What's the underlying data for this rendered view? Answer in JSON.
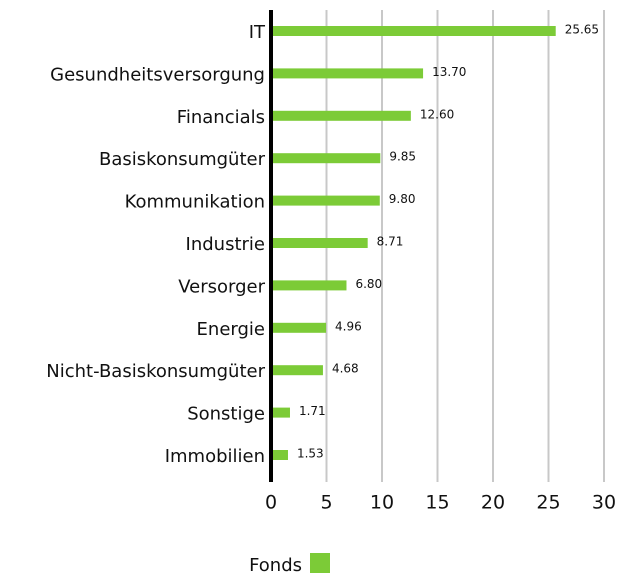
{
  "chart_data": {
    "type": "bar",
    "orientation": "horizontal",
    "categories": [
      "IT",
      "Gesundheitsversorgung",
      "Financials",
      "Basiskonsumgüter",
      "Kommunikation",
      "Industrie",
      "Versorger",
      "Energie",
      "Nicht-Basiskonsumgüter",
      "Sonstige",
      "Immobilien"
    ],
    "series": [
      {
        "name": "Fonds",
        "color": "#7ccb37",
        "values": [
          25.65,
          13.7,
          12.6,
          9.85,
          9.8,
          8.71,
          6.8,
          4.96,
          4.68,
          1.71,
          1.53
        ],
        "value_labels": [
          "25.65",
          "13.70",
          "12.60",
          "9.85",
          "9.80",
          "8.71",
          "6.80",
          "4.96",
          "4.68",
          "1.71",
          "1.53"
        ]
      }
    ],
    "xlim": [
      0,
      30
    ],
    "xticks": [
      0,
      5,
      10,
      15,
      20,
      25,
      30
    ],
    "grid": true,
    "legend": "bottom"
  }
}
